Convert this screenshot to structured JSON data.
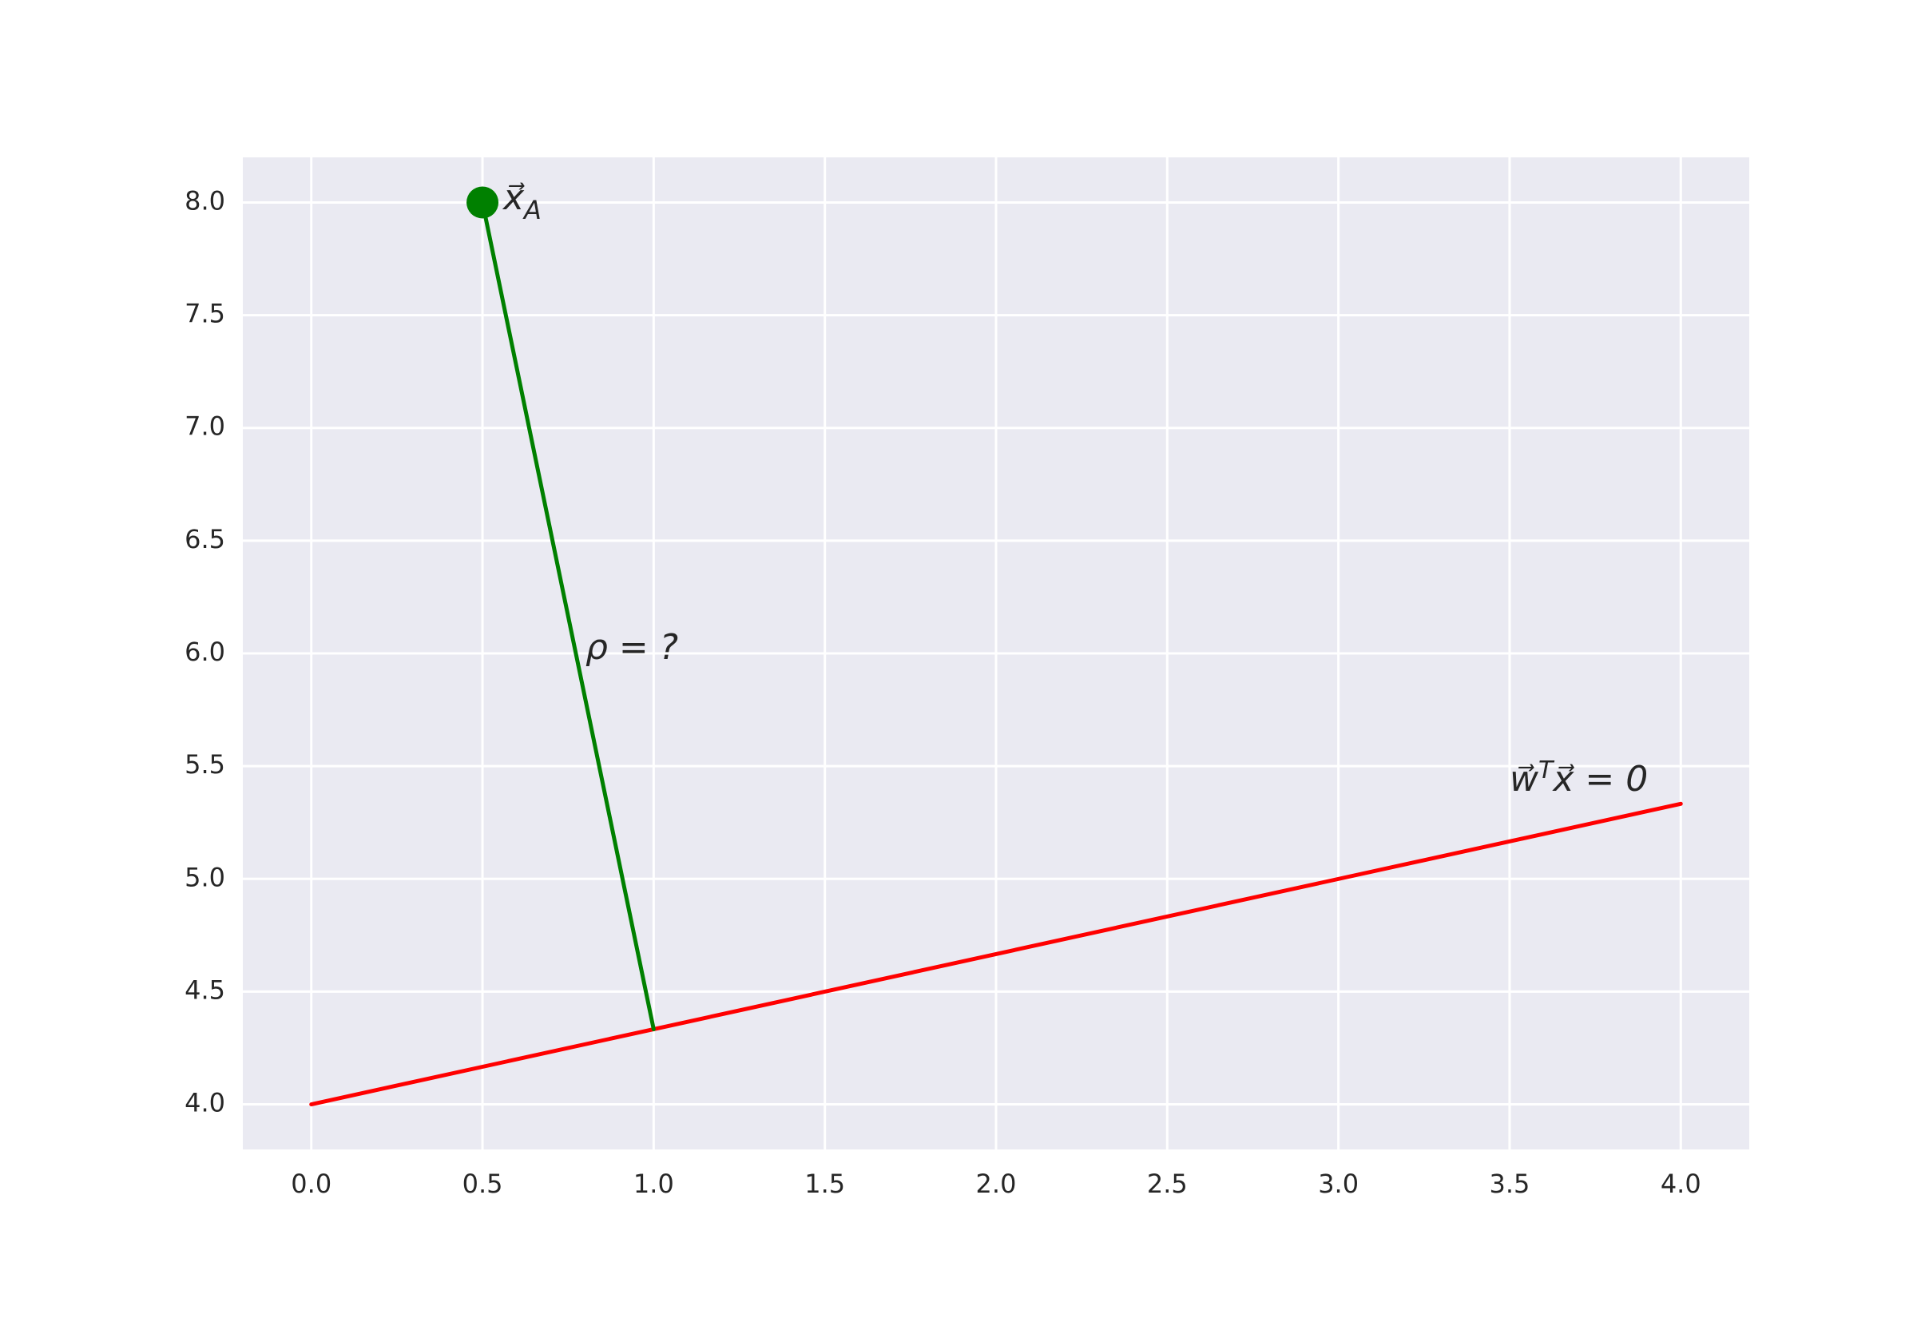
{
  "chart_data": {
    "type": "line",
    "xlim": [
      -0.2,
      4.2
    ],
    "ylim": [
      3.8,
      8.2
    ],
    "xticks": [
      {
        "value": 0,
        "label": "0.0"
      },
      {
        "value": 0.5,
        "label": "0.5"
      },
      {
        "value": 1,
        "label": "1.0"
      },
      {
        "value": 1.5,
        "label": "1.5"
      },
      {
        "value": 2,
        "label": "2.0"
      },
      {
        "value": 2.5,
        "label": "2.5"
      },
      {
        "value": 3,
        "label": "3.0"
      },
      {
        "value": 3.5,
        "label": "3.5"
      },
      {
        "value": 4,
        "label": "4.0"
      }
    ],
    "yticks": [
      {
        "value": 4,
        "label": "4.0"
      },
      {
        "value": 4.5,
        "label": "4.5"
      },
      {
        "value": 5,
        "label": "5.0"
      },
      {
        "value": 5.5,
        "label": "5.5"
      },
      {
        "value": 6,
        "label": "6.0"
      },
      {
        "value": 6.5,
        "label": "6.5"
      },
      {
        "value": 7,
        "label": "7.0"
      },
      {
        "value": 7.5,
        "label": "7.5"
      },
      {
        "value": 8,
        "label": "8.0"
      }
    ],
    "grid": true,
    "series": [
      {
        "color": "#ff0000",
        "x": [
          0,
          4
        ],
        "values": [
          4,
          5.333
        ]
      },
      {
        "color": "#008000",
        "x": [
          0.5,
          1
        ],
        "values": [
          8,
          4.333
        ]
      }
    ],
    "points": {
      "color": "#008000",
      "x": [
        0.5
      ],
      "values": [
        8
      ]
    },
    "annotations": {
      "point": {
        "base": "x⃗",
        "sub": "A"
      },
      "distance": {
        "text": "ρ = ?"
      },
      "plane": {
        "base": "w⃗",
        "sup": "T",
        "rest": "x⃗ = 0"
      }
    }
  }
}
